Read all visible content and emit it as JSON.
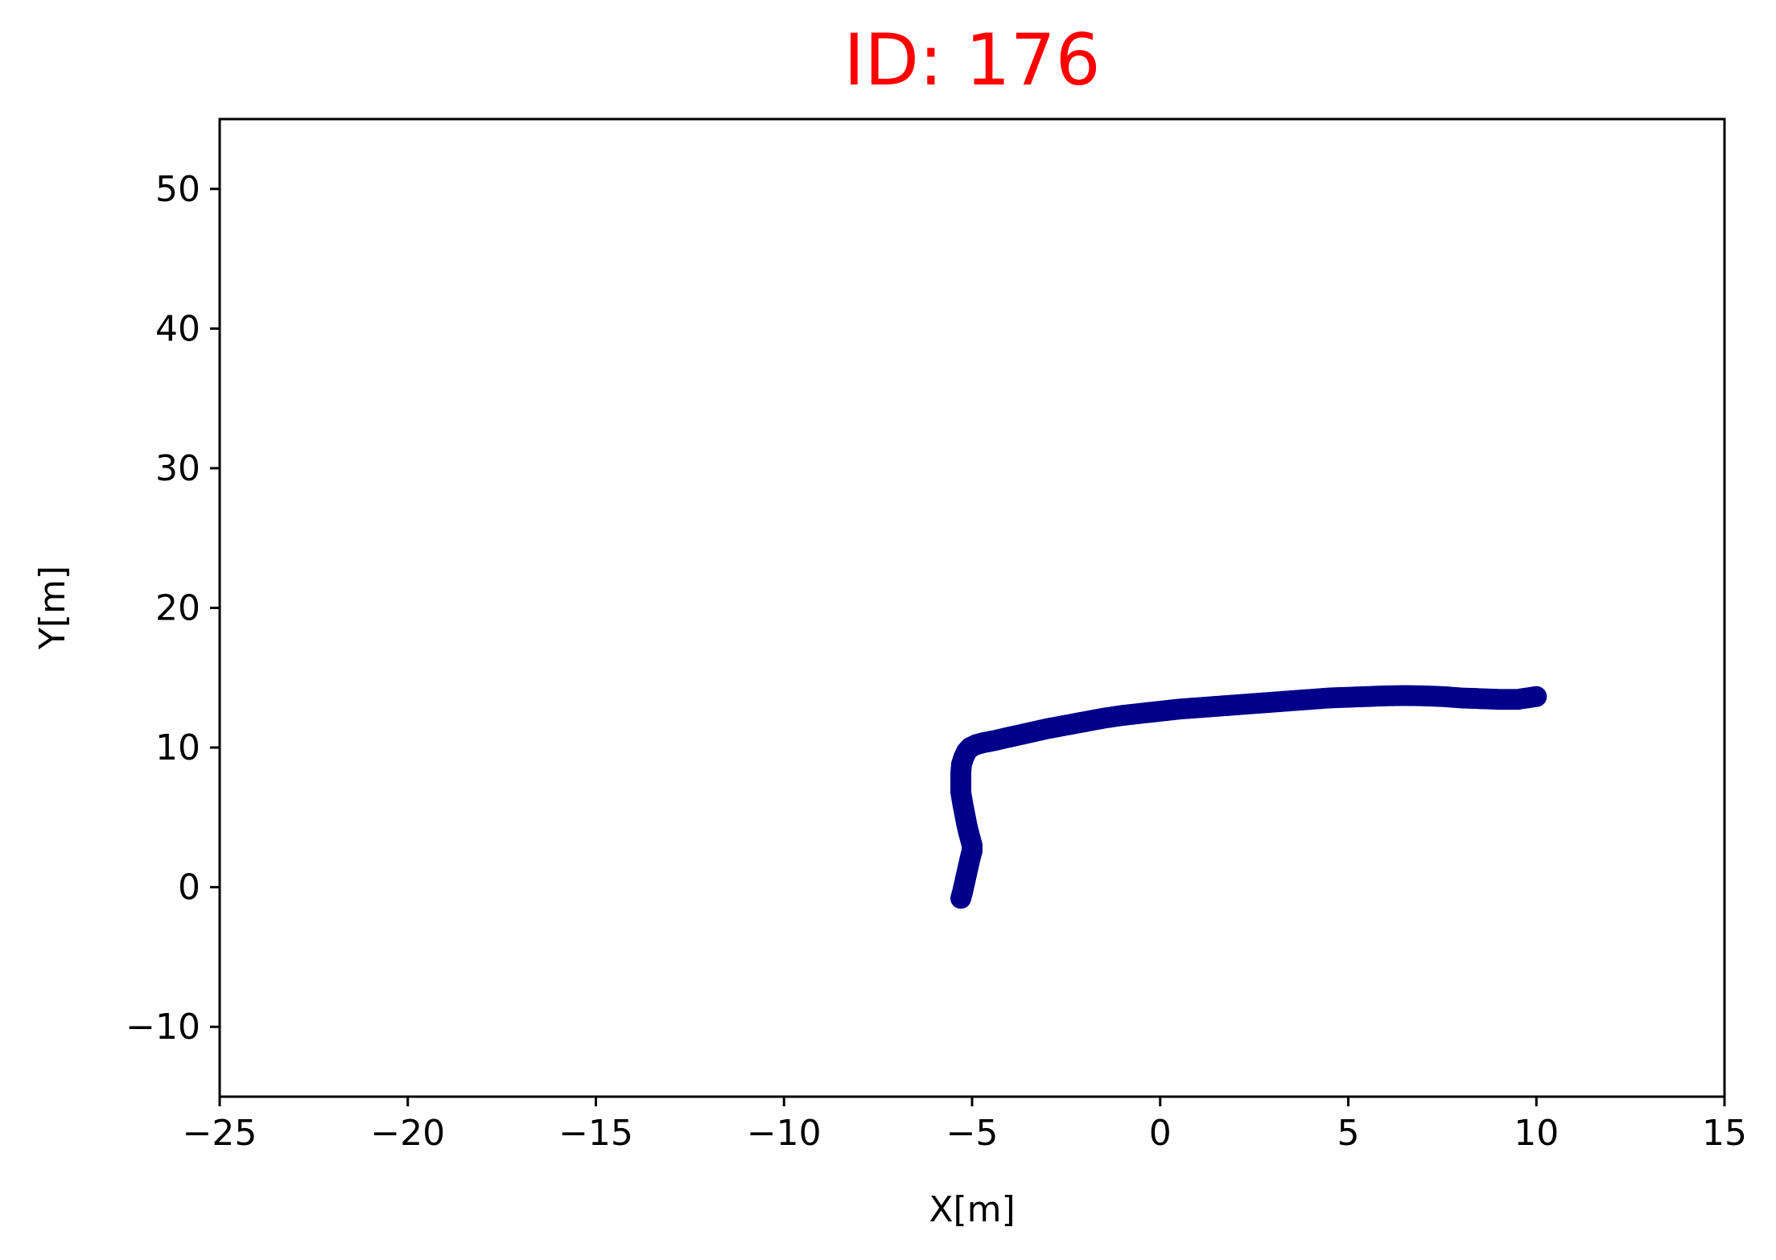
{
  "chart_data": {
    "type": "scatter",
    "title": "ID: 176",
    "title_color": "#ff0000",
    "xlabel": "X[m]",
    "ylabel": "Y[m]",
    "xlim": [
      -25,
      15
    ],
    "ylim": [
      -15,
      55
    ],
    "xticks": [
      -25,
      -20,
      -15,
      -10,
      -5,
      0,
      5,
      10,
      15
    ],
    "xtick_labels": [
      "−25",
      "−20",
      "−15",
      "−10",
      "−5",
      "0",
      "5",
      "10",
      "15"
    ],
    "yticks": [
      -10,
      0,
      10,
      20,
      30,
      40,
      50
    ],
    "ytick_labels": [
      "−10",
      "0",
      "10",
      "20",
      "30",
      "40",
      "50"
    ],
    "grid": false,
    "series": [
      {
        "color": "#00008b",
        "x": [
          -5.3,
          -5.25,
          -5.2,
          -5.15,
          -5.1,
          -5.05,
          -5.0,
          -5.0,
          -5.05,
          -5.1,
          -5.15,
          -5.2,
          -5.25,
          -5.3,
          -5.3,
          -5.3,
          -5.28,
          -5.22,
          -5.15,
          -5.05,
          -4.9,
          -4.7,
          -4.4,
          -4.0,
          -3.5,
          -3.0,
          -2.5,
          -2.0,
          -1.5,
          -1.0,
          -0.5,
          0.0,
          0.5,
          1.0,
          1.5,
          2.0,
          2.5,
          3.0,
          3.5,
          4.0,
          4.5,
          5.0,
          5.5,
          6.0,
          6.5,
          7.0,
          7.5,
          8.0,
          8.5,
          9.0,
          9.5,
          10.0
        ],
        "y": [
          -0.8,
          -0.3,
          0.3,
          0.9,
          1.5,
          2.1,
          2.6,
          3.0,
          3.5,
          4.0,
          4.6,
          5.3,
          6.0,
          6.8,
          7.5,
          8.2,
          8.8,
          9.3,
          9.7,
          10.0,
          10.2,
          10.35,
          10.5,
          10.75,
          11.05,
          11.35,
          11.6,
          11.85,
          12.1,
          12.3,
          12.45,
          12.6,
          12.75,
          12.85,
          12.95,
          13.05,
          13.15,
          13.25,
          13.35,
          13.45,
          13.55,
          13.6,
          13.65,
          13.7,
          13.72,
          13.7,
          13.65,
          13.55,
          13.5,
          13.45,
          13.45,
          13.65
        ]
      }
    ]
  }
}
